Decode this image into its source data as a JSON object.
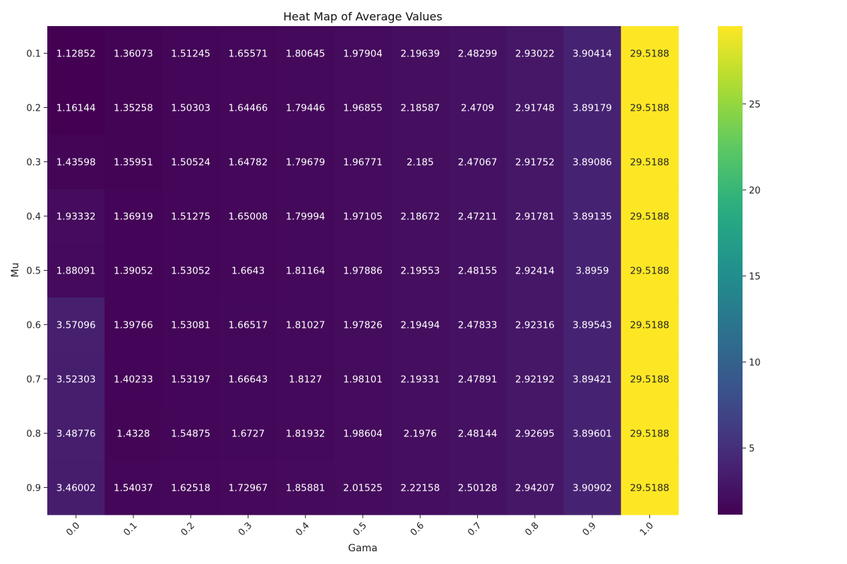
{
  "chart_data": {
    "type": "heatmap",
    "title": "Heat Map of Average Values",
    "xlabel": "Gama",
    "ylabel": "Mu",
    "x_categories": [
      "0.0",
      "0.1",
      "0.2",
      "0.3",
      "0.4",
      "0.5",
      "0.6",
      "0.7",
      "0.8",
      "0.9",
      "1.0"
    ],
    "y_categories": [
      "0.1",
      "0.2",
      "0.3",
      "0.4",
      "0.5",
      "0.6",
      "0.7",
      "0.8",
      "0.9"
    ],
    "values": [
      [
        1.12852,
        1.36073,
        1.51245,
        1.65571,
        1.80645,
        1.97904,
        2.19639,
        2.48299,
        2.93022,
        3.90414,
        29.5188
      ],
      [
        1.16144,
        1.35258,
        1.50303,
        1.64466,
        1.79446,
        1.96855,
        2.18587,
        2.4709,
        2.91748,
        3.89179,
        29.5188
      ],
      [
        1.43598,
        1.35951,
        1.50524,
        1.64782,
        1.79679,
        1.96771,
        2.185,
        2.47067,
        2.91752,
        3.89086,
        29.5188
      ],
      [
        1.93332,
        1.36919,
        1.51275,
        1.65008,
        1.79994,
        1.97105,
        2.18672,
        2.47211,
        2.91781,
        3.89135,
        29.5188
      ],
      [
        1.88091,
        1.39052,
        1.53052,
        1.6643,
        1.81164,
        1.97886,
        2.19553,
        2.48155,
        2.92414,
        3.8959,
        29.5188
      ],
      [
        3.57096,
        1.39766,
        1.53081,
        1.66517,
        1.81027,
        1.97826,
        2.19494,
        2.47833,
        2.92316,
        3.89543,
        29.5188
      ],
      [
        3.52303,
        1.40233,
        1.53197,
        1.66643,
        1.8127,
        1.98101,
        2.19331,
        2.47891,
        2.92192,
        3.89421,
        29.5188
      ],
      [
        3.48776,
        1.4328,
        1.54875,
        1.6727,
        1.81932,
        1.98604,
        2.1976,
        2.48144,
        2.92695,
        3.89601,
        29.5188
      ],
      [
        3.46002,
        1.54037,
        1.62518,
        1.72967,
        1.85881,
        2.01525,
        2.22158,
        2.50128,
        2.94207,
        3.90902,
        29.5188
      ]
    ],
    "value_labels": [
      [
        "1.12852",
        "1.36073",
        "1.51245",
        "1.65571",
        "1.80645",
        "1.97904",
        "2.19639",
        "2.48299",
        "2.93022",
        "3.90414",
        "29.5188"
      ],
      [
        "1.16144",
        "1.35258",
        "1.50303",
        "1.64466",
        "1.79446",
        "1.96855",
        "2.18587",
        "2.4709",
        "2.91748",
        "3.89179",
        "29.5188"
      ],
      [
        "1.43598",
        "1.35951",
        "1.50524",
        "1.64782",
        "1.79679",
        "1.96771",
        "2.185",
        "2.47067",
        "2.91752",
        "3.89086",
        "29.5188"
      ],
      [
        "1.93332",
        "1.36919",
        "1.51275",
        "1.65008",
        "1.79994",
        "1.97105",
        "2.18672",
        "2.47211",
        "2.91781",
        "3.89135",
        "29.5188"
      ],
      [
        "1.88091",
        "1.39052",
        "1.53052",
        "1.6643",
        "1.81164",
        "1.97886",
        "2.19553",
        "2.48155",
        "2.92414",
        "3.8959",
        "29.5188"
      ],
      [
        "3.57096",
        "1.39766",
        "1.53081",
        "1.66517",
        "1.81027",
        "1.97826",
        "2.19494",
        "2.47833",
        "2.92316",
        "3.89543",
        "29.5188"
      ],
      [
        "3.52303",
        "1.40233",
        "1.53197",
        "1.66643",
        "1.8127",
        "1.98101",
        "2.19331",
        "2.47891",
        "2.92192",
        "3.89421",
        "29.5188"
      ],
      [
        "3.48776",
        "1.4328",
        "1.54875",
        "1.6727",
        "1.81932",
        "1.98604",
        "2.1976",
        "2.48144",
        "2.92695",
        "3.89601",
        "29.5188"
      ],
      [
        "3.46002",
        "1.54037",
        "1.62518",
        "1.72967",
        "1.85881",
        "2.01525",
        "2.22158",
        "2.50128",
        "2.94207",
        "3.90902",
        "29.5188"
      ]
    ],
    "colormap": "viridis",
    "vmin": 1.12852,
    "vmax": 29.5188,
    "colorbar_ticks": [
      5,
      10,
      15,
      20,
      25
    ],
    "colorbar_tick_labels": [
      "5",
      "10",
      "15",
      "20",
      "25"
    ],
    "x_tick_rotation": 45,
    "grid": false,
    "legend": "colorbar-right"
  }
}
